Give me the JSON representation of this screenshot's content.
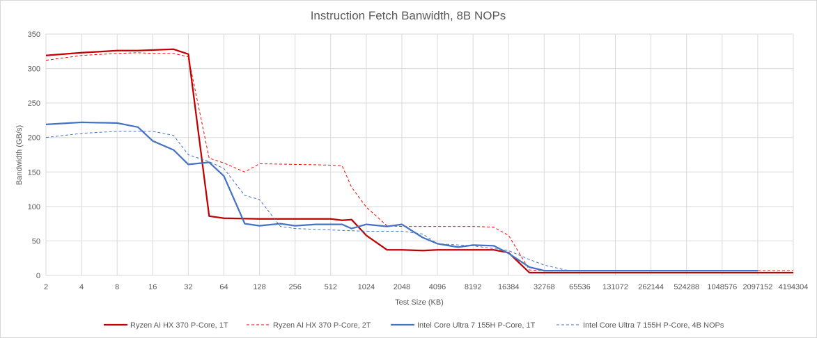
{
  "chart_data": {
    "type": "line",
    "title": "Instruction Fetch Banwidth, 8B NOPs",
    "xlabel": "Test Size (KB)",
    "ylabel": "Bandwidth (GB/s)",
    "x_scale": "log2",
    "xlim": [
      2,
      4194304
    ],
    "ylim": [
      0,
      350
    ],
    "y_ticks": [
      0,
      50,
      100,
      150,
      200,
      250,
      300,
      350
    ],
    "x_ticks": [
      2,
      4,
      8,
      16,
      32,
      64,
      128,
      256,
      512,
      1024,
      2048,
      4096,
      8192,
      16384,
      32768,
      65536,
      131072,
      262144,
      524288,
      1048576,
      2097152,
      4194304
    ],
    "grid": true,
    "legend_position": "bottom",
    "series": [
      {
        "name": "Ryzen AI HX 370 P-Core, 1T",
        "color": "#c00000",
        "style": "solid",
        "x": [
          2,
          4,
          8,
          12,
          24,
          32,
          48,
          64,
          128,
          256,
          512,
          640,
          768,
          1024,
          1536,
          2048,
          3072,
          4096,
          6144,
          8192,
          12288,
          16384,
          24576,
          32768,
          65536,
          131072,
          262144,
          524288,
          1048576,
          2097152,
          4194304
        ],
        "y": [
          319,
          323,
          326,
          326,
          328,
          321,
          86,
          83,
          82,
          82,
          82,
          80,
          81,
          58,
          37,
          37,
          36,
          37,
          37,
          37,
          37,
          33,
          4,
          4,
          4,
          4,
          4,
          4,
          4,
          4,
          4
        ]
      },
      {
        "name": "Ryzen AI HX 370 P-Core, 2T",
        "color": "#ff0000",
        "style": "dashed",
        "x": [
          2,
          4,
          8,
          12,
          16,
          24,
          32,
          48,
          64,
          96,
          128,
          256,
          512,
          640,
          768,
          1024,
          1536,
          2048,
          4096,
          8192,
          12288,
          16384,
          24576,
          32768,
          65536,
          131072,
          262144,
          524288,
          1048576,
          2097152,
          4194304
        ],
        "y": [
          312,
          319,
          322,
          323,
          322,
          322,
          317,
          170,
          163,
          150,
          162,
          161,
          160,
          159,
          128,
          99,
          72,
          71,
          71,
          71,
          70,
          58,
          8,
          7,
          7,
          7,
          7,
          7,
          7,
          7,
          7
        ]
      },
      {
        "name": "Intel Core Ultra 7 155H P-Core, 1T",
        "color": "#4472c4",
        "style": "solid",
        "x": [
          2,
          4,
          8,
          12,
          16,
          24,
          32,
          48,
          64,
          96,
          128,
          192,
          256,
          384,
          512,
          640,
          768,
          1024,
          1536,
          2048,
          3072,
          4096,
          6144,
          8192,
          12288,
          16384,
          24576,
          32768,
          65536,
          131072,
          262144,
          524288,
          1048576,
          2097152
        ],
        "y": [
          219,
          222,
          221,
          215,
          195,
          182,
          161,
          164,
          144,
          75,
          72,
          75,
          72,
          74,
          74,
          74,
          68,
          74,
          71,
          74,
          55,
          46,
          41,
          44,
          43,
          32,
          12,
          7,
          7,
          7,
          7,
          7,
          7,
          7
        ]
      },
      {
        "name": "Intel Core Ultra 7 155H P-Core, 4B NOPs",
        "color": "#4472c4",
        "style": "dashed",
        "x": [
          2,
          4,
          8,
          16,
          24,
          32,
          48,
          64,
          96,
          128,
          192,
          256,
          512,
          1024,
          2048,
          3072,
          4096,
          8192,
          16384,
          24576,
          32768,
          49152,
          65536,
          131072,
          262144,
          524288,
          1048576,
          2097152
        ],
        "y": [
          200,
          206,
          209,
          209,
          203,
          175,
          165,
          155,
          116,
          110,
          71,
          68,
          66,
          64,
          64,
          60,
          46,
          43,
          36,
          23,
          15,
          8,
          7,
          7,
          7,
          7,
          7,
          7
        ]
      }
    ]
  }
}
